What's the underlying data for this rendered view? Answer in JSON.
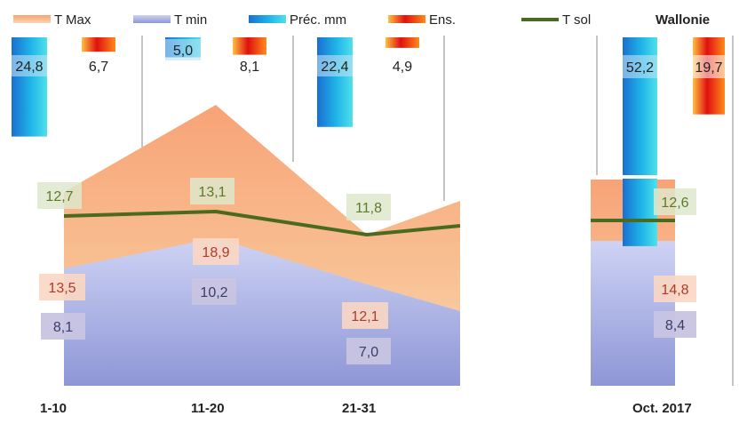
{
  "chart_data": [
    {
      "type": "area",
      "region_label": "",
      "categories": [
        "1-10",
        "11-20",
        "21-31"
      ],
      "series": [
        {
          "name": "T Max",
          "values": [
            13.5,
            18.9,
            12.1
          ]
        },
        {
          "name": "T min",
          "values": [
            8.1,
            10.2,
            7.0
          ]
        },
        {
          "name": "Préc. mm",
          "values": [
            24.8,
            5.0,
            22.4
          ]
        },
        {
          "name": "Ens.",
          "values": [
            6.7,
            8.1,
            4.9
          ]
        },
        {
          "name": "T sol",
          "values": [
            12.7,
            13.1,
            11.8
          ]
        }
      ]
    },
    {
      "type": "bar",
      "region_label": "Wallonie",
      "categories": [
        "Oct. 2017"
      ],
      "series": [
        {
          "name": "T Max",
          "values": [
            14.8
          ]
        },
        {
          "name": "T min",
          "values": [
            8.4
          ]
        },
        {
          "name": "Préc. mm",
          "values": [
            52.2
          ]
        },
        {
          "name": "Ens.",
          "values": [
            19.7
          ]
        },
        {
          "name": "T sol",
          "values": [
            12.6
          ]
        }
      ]
    }
  ],
  "legend": {
    "items": [
      {
        "label": "T Max",
        "color": "#f5a06a"
      },
      {
        "label": "T min",
        "color": "#aeb5e6"
      },
      {
        "label": "Préc. mm",
        "color": "#1f8fd8"
      },
      {
        "label": "Ens.",
        "color": "#f05a10"
      },
      {
        "label": "T sol",
        "color": "#4a6a20"
      }
    ],
    "region": "Wallonie"
  },
  "colors": {
    "tmax": "#f5a06a",
    "tmin": "#aeb5e6",
    "prec": "#1f8fd8",
    "ens": "#f05a10",
    "tsol": "#4a6a20"
  }
}
